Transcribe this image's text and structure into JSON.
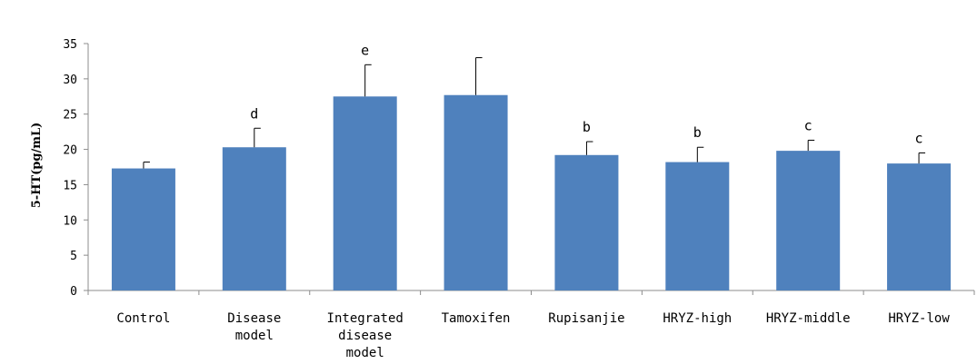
{
  "chart_data": {
    "type": "bar",
    "ylabel": "5-HT(pg/mL)",
    "ylim": [
      0,
      35
    ],
    "yticks": [
      0,
      5,
      10,
      15,
      20,
      25,
      30,
      35
    ],
    "grid": false,
    "categories": [
      [
        "Control"
      ],
      [
        "Disease",
        "model"
      ],
      [
        "Integrated",
        "disease",
        "model"
      ],
      [
        "Tamoxifen"
      ],
      [
        "Rupisanjie"
      ],
      [
        "HRYZ-high"
      ],
      [
        "HRYZ-middle"
      ],
      [
        "HRYZ-low"
      ]
    ],
    "values": [
      17.3,
      20.3,
      27.5,
      27.7,
      19.2,
      18.2,
      19.8,
      18.0
    ],
    "error": [
      0.9,
      2.7,
      4.5,
      5.3,
      1.9,
      2.1,
      1.5,
      1.5
    ],
    "significance": [
      "",
      "d",
      "e",
      "",
      "b",
      "b",
      "c",
      "c"
    ],
    "bar_color": "#4f81bd"
  }
}
